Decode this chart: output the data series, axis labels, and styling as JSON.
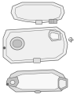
{
  "bg_color": "#ffffff",
  "figure_width": 0.98,
  "figure_height": 1.2,
  "dpi": 100,
  "line_color": "#666666",
  "fill_light": "#f0f0f0",
  "fill_mid": "#dedede",
  "fill_dark": "#c0c0c0",
  "fill_white": "#f8f8f8"
}
